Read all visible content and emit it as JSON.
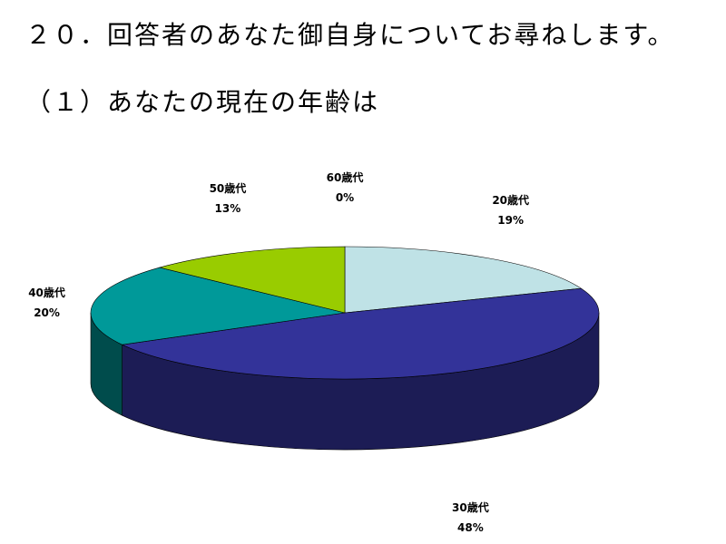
{
  "heading": "２０．回答者のあなた御自身についてお尋ねします。",
  "subheading": "（１）あなたの現在の年齢は",
  "chart_data": {
    "type": "pie",
    "style": "3d",
    "categories": [
      "20歳代",
      "30歳代",
      "40歳代",
      "50歳代",
      "60歳代"
    ],
    "values": [
      19,
      48,
      20,
      13,
      0
    ],
    "percent_labels": [
      "19%",
      "48%",
      "20%",
      "13%",
      "0%"
    ],
    "colors": [
      "#bfe2e6",
      "#333399",
      "#009999",
      "#99cc00",
      "#ffffff"
    ],
    "side_colors": [
      "#8aa8ab",
      "#1c1c55",
      "#004c4c",
      "#5f7f00",
      "#cccccc"
    ],
    "start_angle_deg": 0,
    "direction": "clockwise",
    "legend": "none"
  }
}
